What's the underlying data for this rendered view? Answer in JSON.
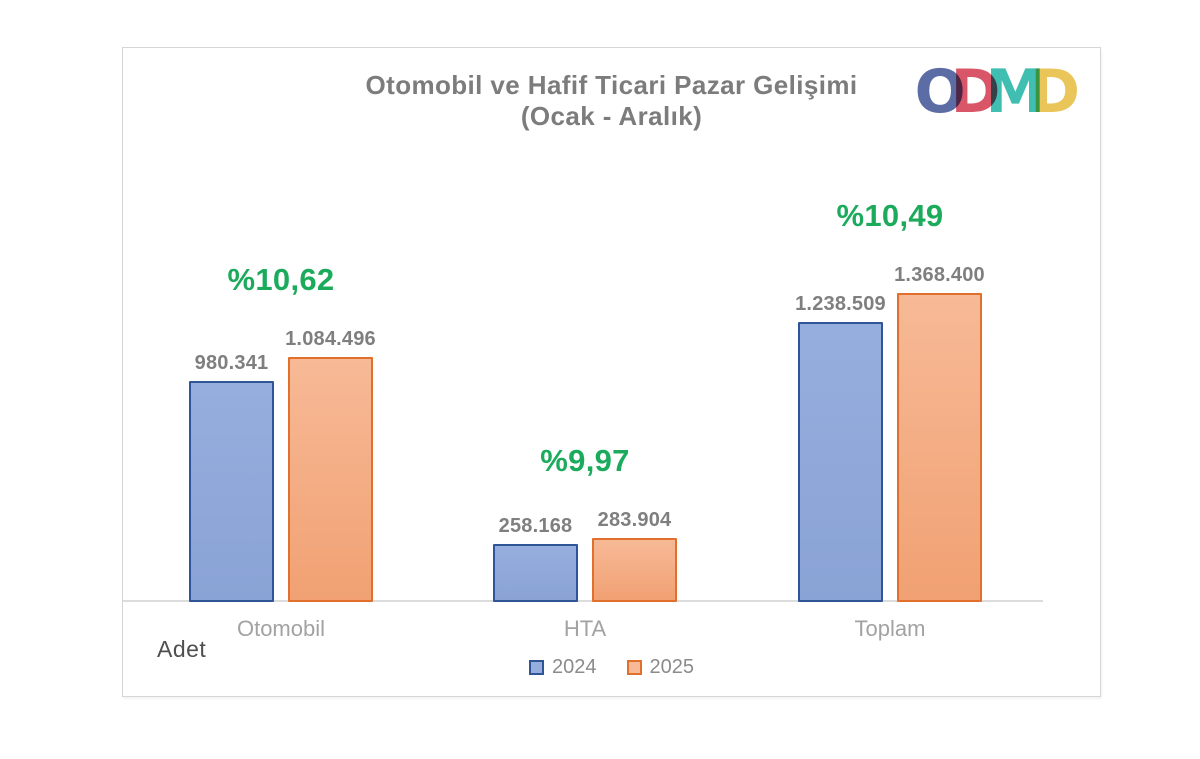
{
  "title": {
    "line1": "Otomobil ve Hafif Ticari Pazar Gelişimi",
    "line2": "(Ocak - Aralık)"
  },
  "logo": {
    "name": "ODMD",
    "letters": [
      {
        "char": "O",
        "color": "#4e5f9d"
      },
      {
        "char": "D",
        "color": "#d5475a"
      },
      {
        "char": "M",
        "color": "#2fb9ab"
      },
      {
        "char": "D",
        "color": "#e9c04c"
      }
    ]
  },
  "axis": {
    "unit_label": "Adet"
  },
  "chart_data": {
    "type": "bar",
    "title": "Otomobil ve Hafif Ticari Pazar Gelişimi (Ocak - Aralık)",
    "categories": [
      "Otomobil",
      "HTA",
      "Toplam"
    ],
    "series": [
      {
        "name": "2024",
        "values": [
          980341,
          258168,
          1238509
        ],
        "value_labels": [
          "980.341",
          "258.168",
          "1.238.509"
        ],
        "fill": "#96aedd",
        "fill2": "#8aa3d6",
        "border": "#2f5597"
      },
      {
        "name": "2025",
        "values": [
          1084496,
          283904,
          1368400
        ],
        "value_labels": [
          "1.084.496",
          "283.904",
          "1.368.400"
        ],
        "fill": "#f7b996",
        "fill2": "#f1a173",
        "border": "#e2702d"
      }
    ],
    "change_labels": [
      "%10,62",
      "%9,97",
      "%10,49"
    ],
    "change_color": "#1cab5c",
    "xlabel": "",
    "ylabel": "Adet",
    "ylim": [
      0,
      1400000
    ],
    "grid": false,
    "legend_position": "bottom"
  }
}
